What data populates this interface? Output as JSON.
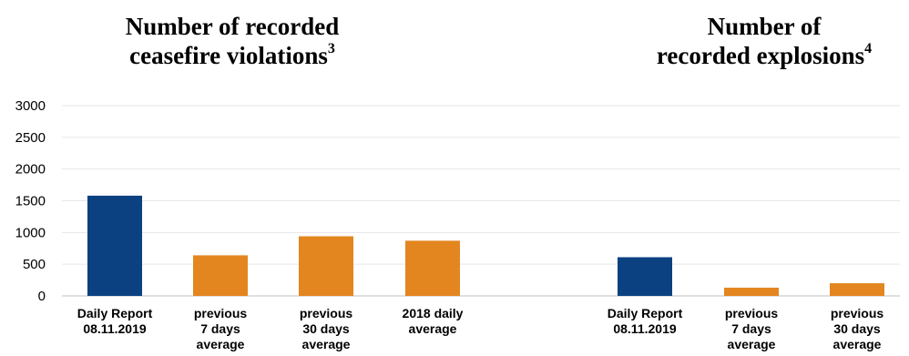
{
  "colors": {
    "highlight": "#0b4180",
    "comparison": "#e3861f"
  },
  "chart_data": [
    {
      "type": "bar",
      "title": "Number of recorded ceasefire violations",
      "title_footnote": "3",
      "categories": [
        [
          "Daily Report",
          "08.11.2019"
        ],
        [
          "previous",
          "7 days",
          "average"
        ],
        [
          "previous",
          "30 days",
          "average"
        ],
        [
          "2018 daily",
          "average"
        ]
      ],
      "values": [
        1580,
        640,
        940,
        870
      ],
      "bar_colors": [
        "highlight",
        "comparison",
        "comparison",
        "comparison"
      ],
      "ylim": [
        0,
        3000
      ],
      "yticks": [
        0,
        500,
        1000,
        1500,
        2000,
        2500,
        3000
      ],
      "xlabel": "",
      "ylabel": "",
      "grid": true
    },
    {
      "type": "bar",
      "title": "Number of recorded explosions",
      "title_footnote": "4",
      "categories": [
        [
          "Daily Report",
          "08.11.2019"
        ],
        [
          "previous",
          "7 days",
          "average"
        ],
        [
          "previous",
          "30 days",
          "average"
        ]
      ],
      "values": [
        610,
        130,
        200
      ],
      "bar_colors": [
        "highlight",
        "comparison",
        "comparison"
      ],
      "ylim": [
        0,
        3000
      ],
      "xlabel": "",
      "ylabel": "",
      "grid": true
    }
  ]
}
